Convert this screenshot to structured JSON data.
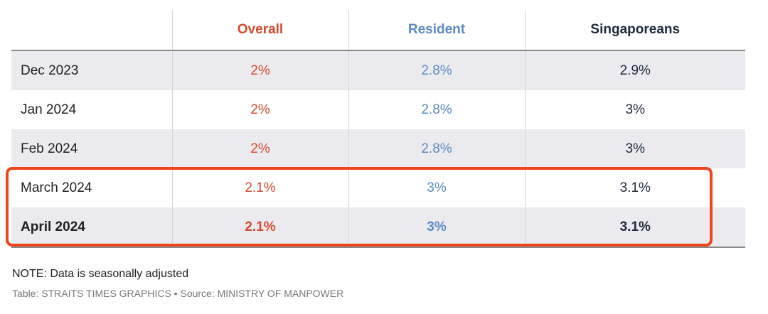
{
  "chart_data": {
    "type": "table",
    "columns": [
      {
        "label": "",
        "color": "#222222"
      },
      {
        "label": "Overall",
        "color": "#d84a2f"
      },
      {
        "label": "Resident",
        "color": "#5b8bc4"
      },
      {
        "label": "Singaporeans",
        "color": "#1f2a3c"
      }
    ],
    "rows": [
      {
        "period": "Dec 2023",
        "values": [
          "2%",
          "2.8%",
          "2.9%"
        ],
        "bold": false
      },
      {
        "period": "Jan 2024",
        "values": [
          "2%",
          "2.8%",
          "3%"
        ],
        "bold": false
      },
      {
        "period": "Feb 2024",
        "values": [
          "2%",
          "2.8%",
          "3%"
        ],
        "bold": false
      },
      {
        "period": "March 2024",
        "values": [
          "2.1%",
          "3%",
          "3.1%"
        ],
        "bold": false
      },
      {
        "period": "April 2024",
        "values": [
          "2.1%",
          "3%",
          "3.1%"
        ],
        "bold": true
      }
    ],
    "highlight_color": "#f0461e"
  },
  "footer": {
    "note": "NOTE: Data is seasonally adjusted",
    "source": "Table: STRAITS TIMES GRAPHICS • Source: MINISTRY OF MANPOWER"
  }
}
